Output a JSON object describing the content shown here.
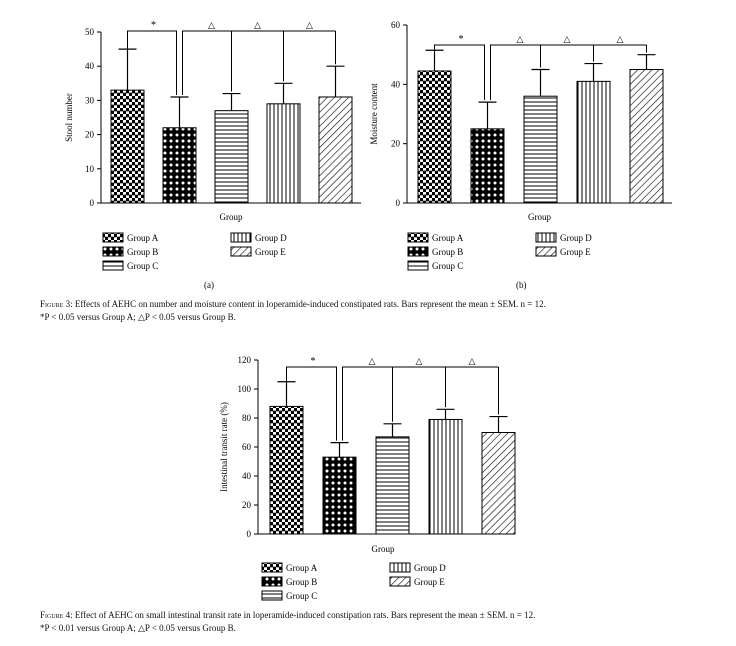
{
  "figure3": {
    "caption_label": "Figure 3",
    "caption_text": ": Effects of AEHC on number and moisture content in loperamide-induced constipated rats. Bars represent the mean ± SEM. n = 12.",
    "caption_line2": "*P < 0.05 versus Group A; △P < 0.05 versus Group B."
  },
  "figure4": {
    "caption_label": "Figure 4",
    "caption_text": ": Effect of AEHC on small intestinal transit rate in loperamide-induced constipation rats. Bars represent the mean ± SEM. n = 12.",
    "caption_line2": "*P < 0.01 versus Group A; △P < 0.05 versus Group B."
  },
  "legend_items": [
    "Group A",
    "Group B",
    "Group C",
    "Group D",
    "Group E"
  ],
  "sig_marks": {
    "star": "*",
    "triangle": "△"
  },
  "colors": {
    "bar_stroke": "#000000",
    "background": "#ffffff"
  },
  "chart_data": [
    {
      "type": "bar",
      "panel_label": "(a)",
      "xlabel": "Group",
      "ylabel": "Stool number",
      "ylim": [
        0,
        50
      ],
      "yticks": [
        0,
        10,
        20,
        30,
        40,
        50
      ],
      "categories": [
        "Group A",
        "Group B",
        "Group C",
        "Group D",
        "Group E"
      ],
      "values": [
        33,
        22,
        27,
        29,
        31
      ],
      "error_upper": [
        45,
        31,
        32,
        35,
        40
      ],
      "significance": [
        "*",
        "△",
        "△",
        "△"
      ]
    },
    {
      "type": "bar",
      "panel_label": "(b)",
      "xlabel": "Group",
      "ylabel": "Moisture content",
      "ylim": [
        0,
        60
      ],
      "yticks": [
        0,
        20,
        40,
        60
      ],
      "categories": [
        "Group A",
        "Group B",
        "Group C",
        "Group D",
        "Group E"
      ],
      "values": [
        44.5,
        25,
        36,
        41,
        45
      ],
      "error_upper": [
        51.5,
        34,
        45,
        47,
        50
      ],
      "significance": [
        "*",
        "△",
        "△",
        "△"
      ]
    },
    {
      "type": "bar",
      "panel_label": "",
      "xlabel": "Group",
      "ylabel": "Intestinal transit rate (%)",
      "ylim": [
        0,
        120
      ],
      "yticks": [
        0,
        20,
        40,
        60,
        80,
        100,
        120
      ],
      "categories": [
        "Group A",
        "Group B",
        "Group C",
        "Group D",
        "Group E"
      ],
      "values": [
        88,
        53,
        67,
        79,
        70
      ],
      "error_upper": [
        105,
        63,
        76,
        86,
        81
      ],
      "significance": [
        "*",
        "△",
        "△",
        "△"
      ]
    }
  ]
}
